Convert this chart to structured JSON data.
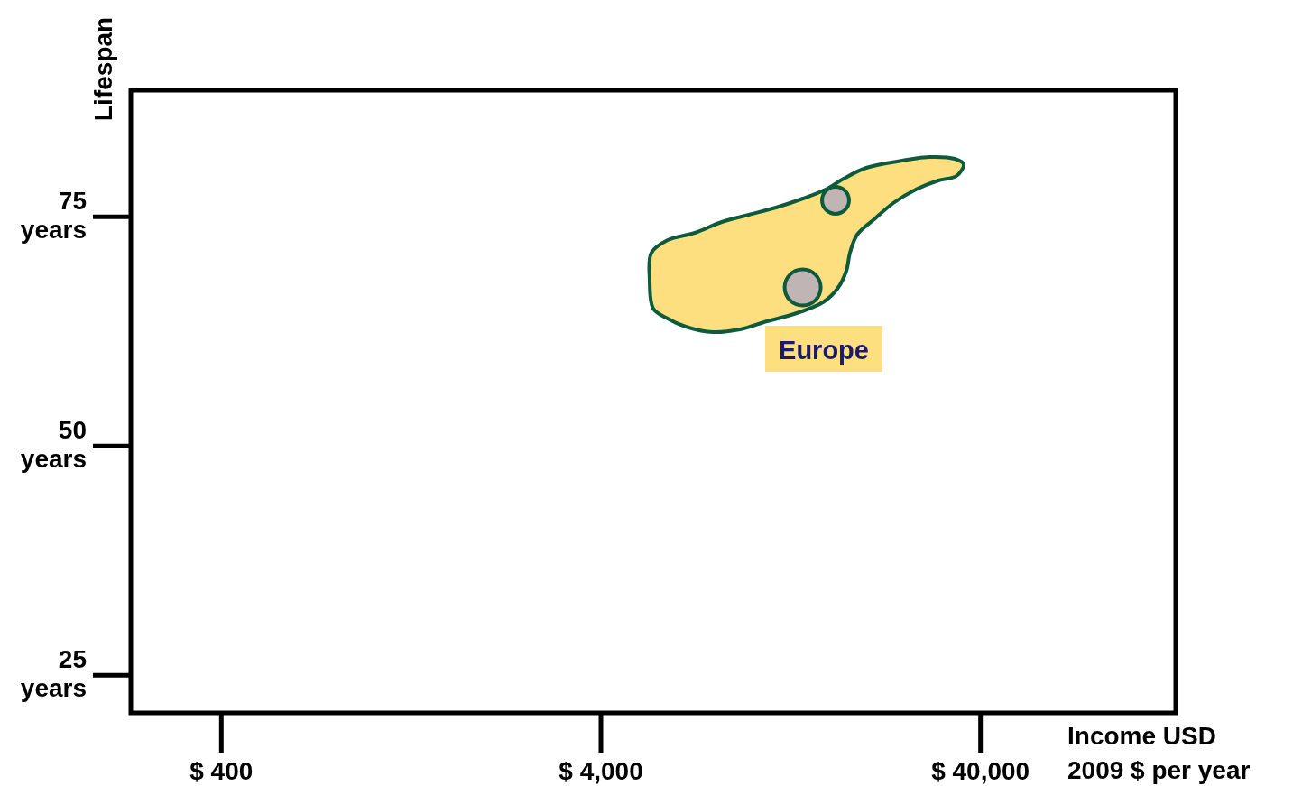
{
  "chart_data": {
    "type": "bubble",
    "xlabel": "Income USD 2009 $ per year",
    "ylabel": "Lifespan",
    "log": "x",
    "xlim": [
      231,
      130700
    ],
    "xticks": [
      {
        "value": 400,
        "label": "$ 400"
      },
      {
        "value": 4000,
        "label": "$ 4,000"
      },
      {
        "value": 40000,
        "label": "$ 40,000"
      }
    ],
    "ylim": [
      20.9,
      88.8
    ],
    "yticks": [
      {
        "value": 25,
        "label": "25 years"
      },
      {
        "value": 50,
        "label": "50 years"
      },
      {
        "value": 75,
        "label": "75 years"
      }
    ],
    "x": [
      16600,
      13600
    ],
    "values": [
      76.8,
      67.3
    ],
    "sizes": [
      0.56,
      1
    ],
    "color": "#c0b4b4",
    "annotations": [
      "Europe"
    ],
    "grid": false
  }
}
